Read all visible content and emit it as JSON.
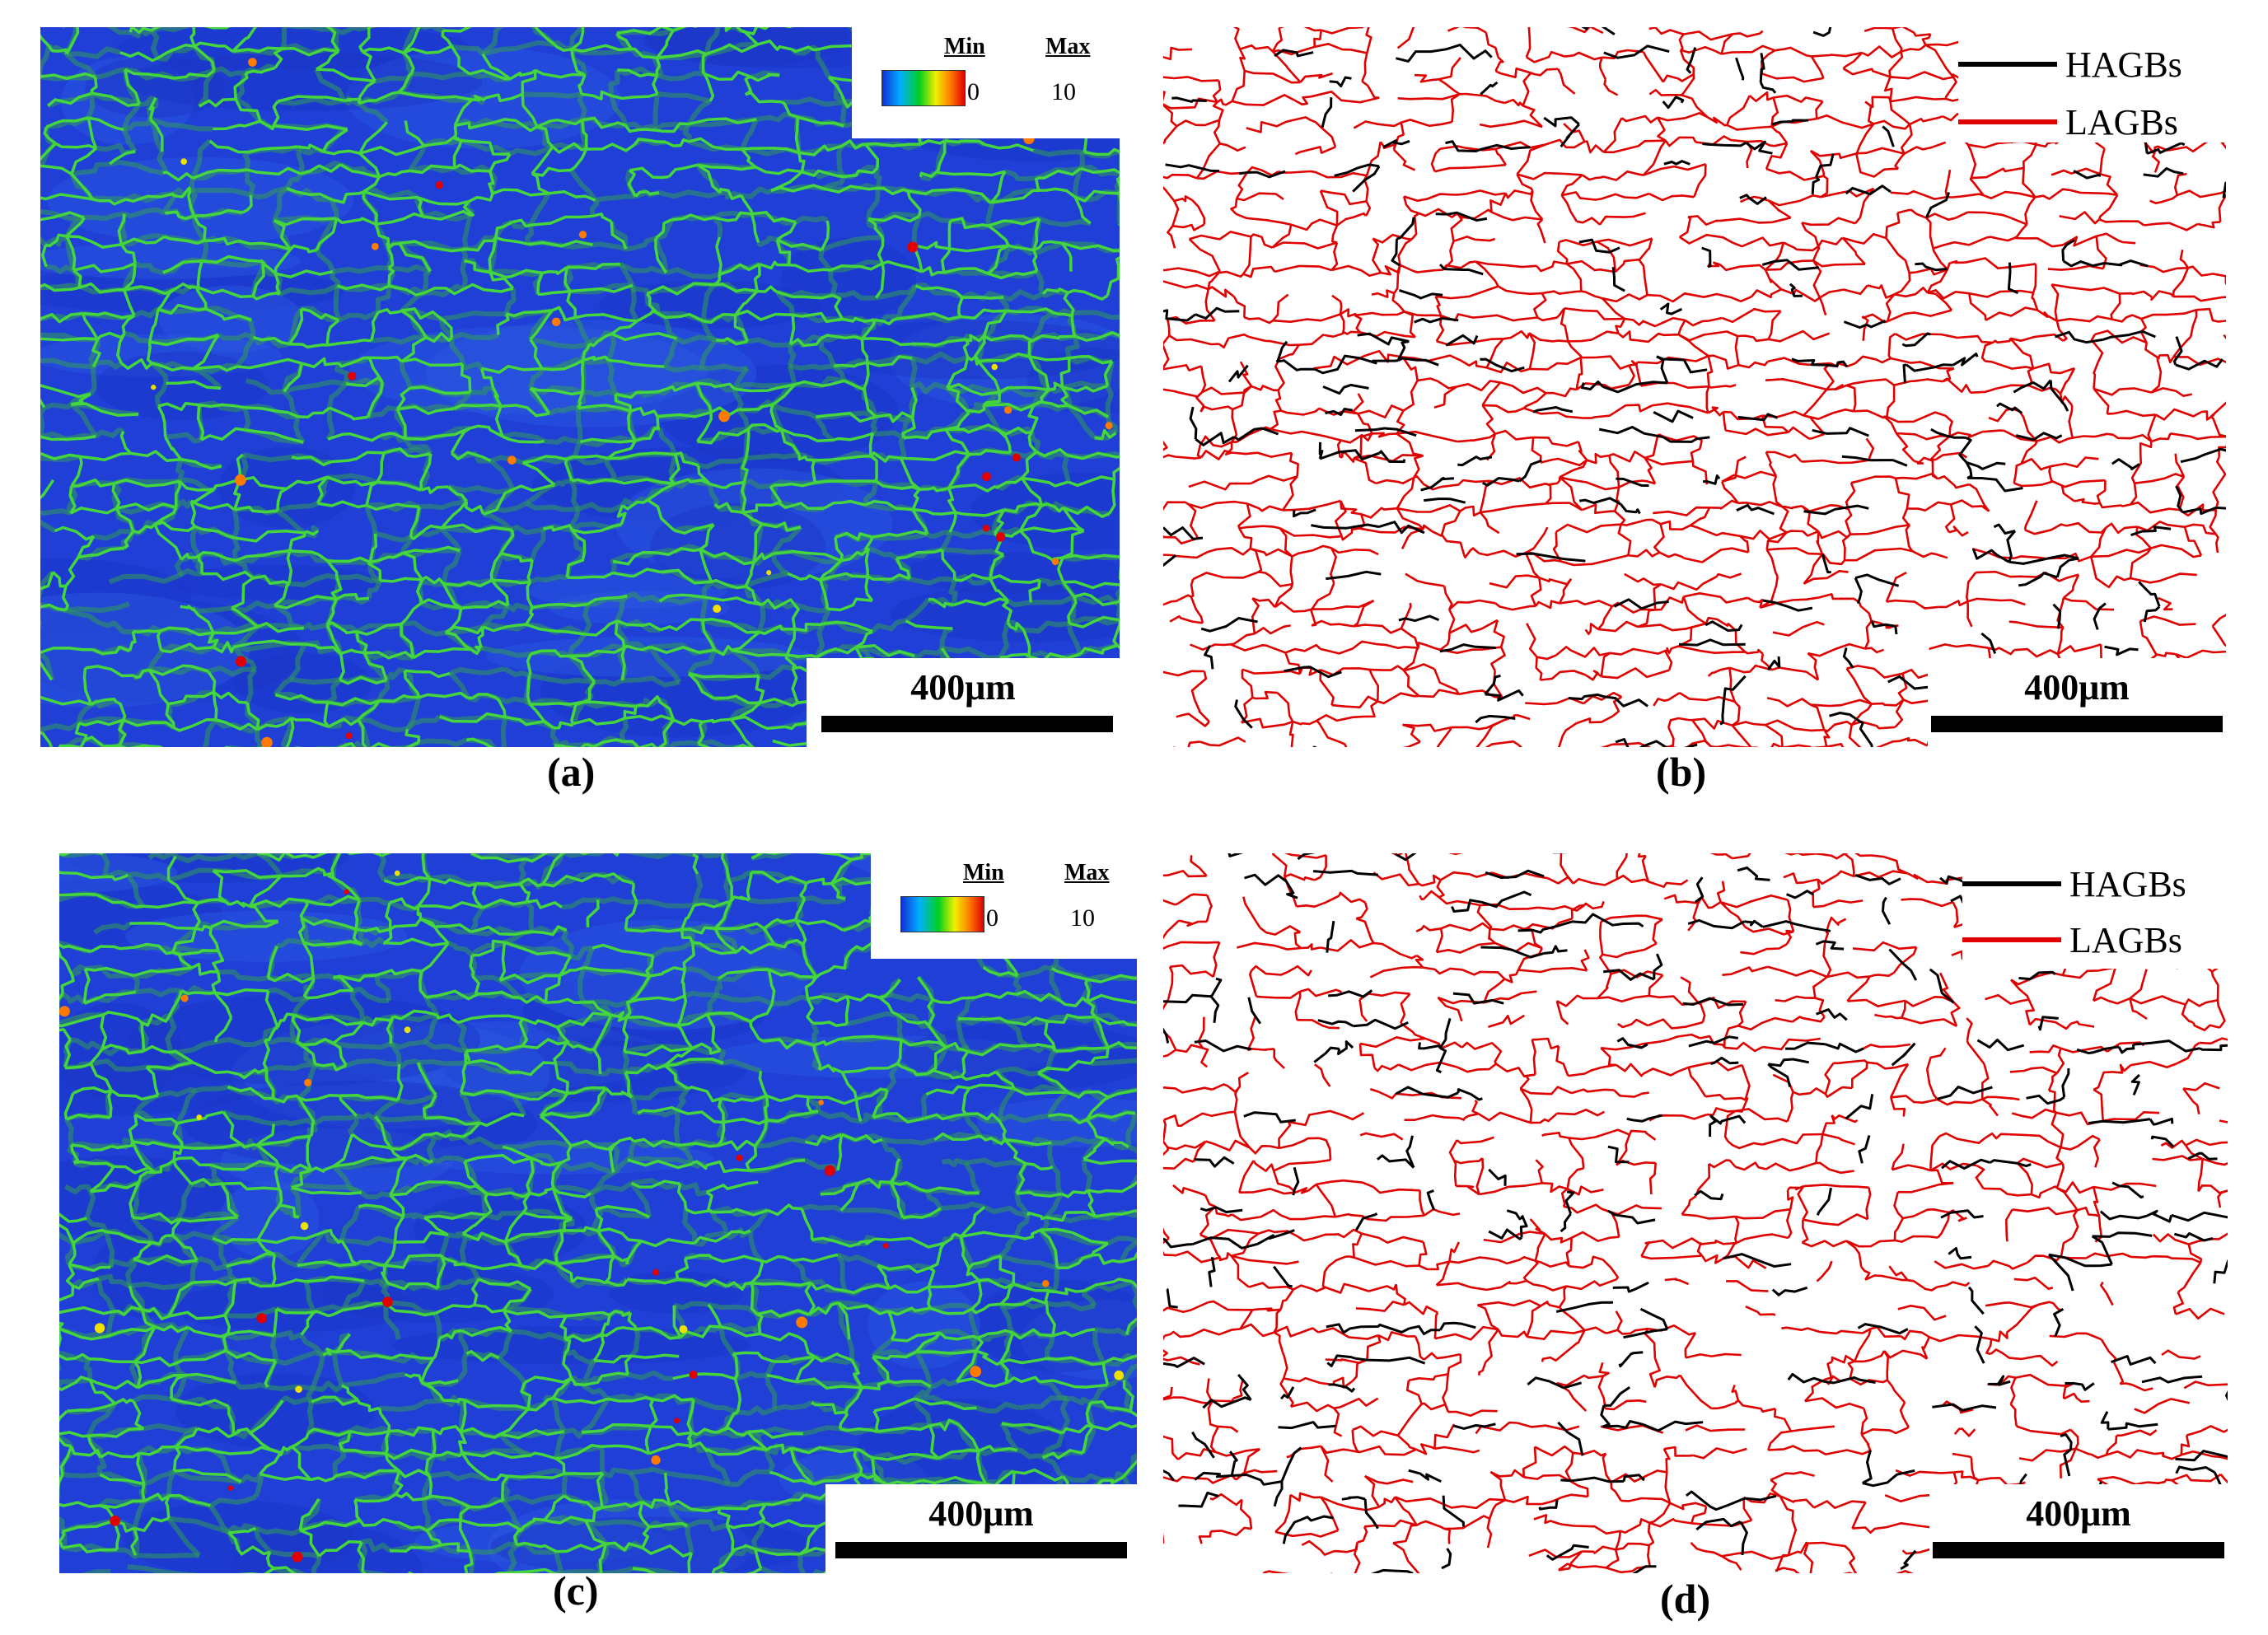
{
  "panels": {
    "a": {
      "caption": "(a)",
      "scale_label": "400μm",
      "colorkey": {
        "min_label": "Min",
        "max_label": "Max",
        "min_value": "0",
        "max_value": "10"
      }
    },
    "b": {
      "caption": "(b)",
      "scale_label": "400μm",
      "legend": [
        {
          "label": "HAGBs",
          "color": "#000000"
        },
        {
          "label": "LAGBs",
          "color": "#e00000"
        }
      ]
    },
    "c": {
      "caption": "(c)",
      "scale_label": "400μm",
      "colorkey": {
        "min_label": "Min",
        "max_label": "Max",
        "min_value": "0",
        "max_value": "10"
      }
    },
    "d": {
      "caption": "(d)",
      "scale_label": "400μm",
      "legend": [
        {
          "label": "HAGBs",
          "color": "#000000"
        },
        {
          "label": "LAGBs",
          "color": "#e00000"
        }
      ]
    }
  },
  "colors": {
    "map_background": "#1f3fd6",
    "boundary_green": "#3fd23f",
    "hagb": "#000000",
    "lagb": "#e00000"
  }
}
